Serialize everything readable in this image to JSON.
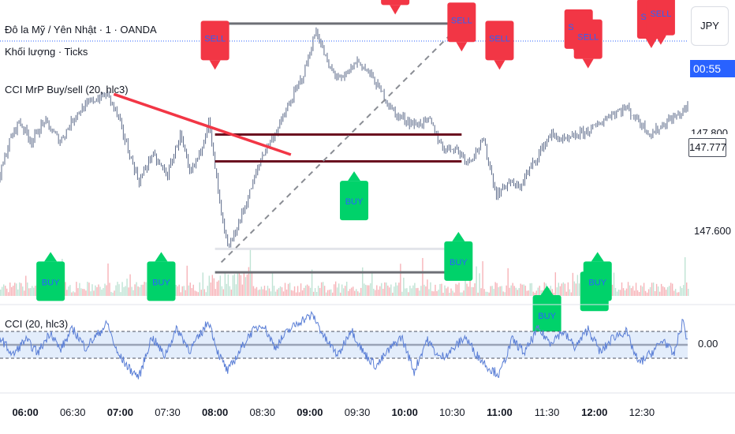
{
  "legend": {
    "symbol": "Đô la Mỹ / Yên Nhật · 1 · OANDA",
    "volume": "Khối lượng · Ticks",
    "indicator": "CCI MrP Buy/sell (20, hlc3)",
    "cci_pane": "CCI (20, hlc3)"
  },
  "price_axis": {
    "currency": "JPY",
    "countdown": "00:55",
    "current_price": "147.777",
    "partial_label": "147.800",
    "tick_label": "147.600",
    "cci_label": "0.00"
  },
  "colors": {
    "price_line": "#2962ff",
    "candle": "#5d6b8a",
    "sell": "#f23645",
    "buy": "#00d26a",
    "signal_text": "#2962ff",
    "resistance": "#6b1020",
    "trendline": "#f23645",
    "cci_line": "#5b7fd6",
    "cci_band": "#e3edfb"
  },
  "chart_data": {
    "type": "line",
    "title": "Đô la Mỹ / Yên Nhật · 1 · OANDA",
    "x_ticks": [
      "06:00",
      "06:30",
      "07:00",
      "07:30",
      "08:00",
      "08:30",
      "09:00",
      "09:30",
      "10:00",
      "10:30",
      "11:00",
      "11:30",
      "12:00",
      "12:30"
    ],
    "x_ticks_bold": [
      "06:00",
      "07:00",
      "08:00",
      "09:00",
      "10:00",
      "11:00",
      "12:00"
    ],
    "x_range": [
      "05:44",
      "12:59"
    ],
    "ylim": [
      147.53,
      147.97
    ],
    "y_ticks": [
      147.6,
      147.8
    ],
    "current_price": 147.777,
    "price_path": [
      [
        "05:44",
        147.71
      ],
      [
        "05:50",
        147.76
      ],
      [
        "05:56",
        147.79
      ],
      [
        "06:04",
        147.76
      ],
      [
        "06:12",
        147.79
      ],
      [
        "06:22",
        147.76
      ],
      [
        "06:32",
        147.8
      ],
      [
        "06:42",
        147.82
      ],
      [
        "06:52",
        147.83
      ],
      [
        "06:58",
        147.8
      ],
      [
        "07:06",
        147.74
      ],
      [
        "07:12",
        147.7
      ],
      [
        "07:20",
        147.74
      ],
      [
        "07:30",
        147.71
      ],
      [
        "07:38",
        147.77
      ],
      [
        "07:44",
        147.71
      ],
      [
        "07:50",
        147.74
      ],
      [
        "07:56",
        147.79
      ],
      [
        "08:00",
        147.72
      ],
      [
        "08:04",
        147.65
      ],
      [
        "08:08",
        147.6
      ],
      [
        "08:12",
        147.62
      ],
      [
        "08:20",
        147.67
      ],
      [
        "08:30",
        147.74
      ],
      [
        "08:40",
        147.78
      ],
      [
        "08:48",
        147.82
      ],
      [
        "08:56",
        147.86
      ],
      [
        "09:04",
        147.925
      ],
      [
        "09:12",
        147.87
      ],
      [
        "09:20",
        147.85
      ],
      [
        "09:30",
        147.88
      ],
      [
        "09:38",
        147.86
      ],
      [
        "09:46",
        147.83
      ],
      [
        "09:54",
        147.8
      ],
      [
        "10:06",
        147.785
      ],
      [
        "10:16",
        147.79
      ],
      [
        "10:24",
        147.75
      ],
      [
        "10:32",
        147.75
      ],
      [
        "10:40",
        147.73
      ],
      [
        "10:50",
        147.76
      ],
      [
        "10:58",
        147.68
      ],
      [
        "11:06",
        147.7
      ],
      [
        "11:12",
        147.69
      ],
      [
        "11:22",
        147.73
      ],
      [
        "11:32",
        147.77
      ],
      [
        "11:42",
        147.76
      ],
      [
        "11:50",
        147.77
      ],
      [
        "12:00",
        147.78
      ],
      [
        "12:10",
        147.8
      ],
      [
        "12:20",
        147.81
      ],
      [
        "12:28",
        147.79
      ],
      [
        "12:36",
        147.77
      ],
      [
        "12:46",
        147.79
      ],
      [
        "12:54",
        147.8
      ],
      [
        "12:58",
        147.81
      ]
    ],
    "volume": "ticks",
    "horizontal_levels": [
      {
        "kind": "grey",
        "from": "08:00",
        "to": "10:36",
        "price": 147.935
      },
      {
        "kind": "dark-red",
        "from": "08:00",
        "to": "10:36",
        "price": 147.77
      },
      {
        "kind": "dark-red",
        "from": "08:00",
        "to": "10:36",
        "price": 147.73
      },
      {
        "kind": "light",
        "from": "08:00",
        "to": "10:36",
        "price": 147.6
      },
      {
        "kind": "grey",
        "from": "08:00",
        "to": "10:36",
        "price": 147.565
      }
    ],
    "trend_lines": [
      {
        "kind": "red",
        "from": [
          "06:56",
          147.83
        ],
        "to": [
          "08:48",
          147.74
        ]
      },
      {
        "kind": "dashed",
        "from": [
          "08:04",
          147.58
        ],
        "to": [
          "10:36",
          147.935
        ]
      }
    ],
    "signals": [
      {
        "type": "SELL",
        "time": "08:00",
        "price": 147.918
      },
      {
        "type": "SELL",
        "time": "09:54",
        "price": 148.0
      },
      {
        "type": "SELL",
        "time": "10:36",
        "price": 147.945
      },
      {
        "type": "SELL",
        "time": "11:00",
        "price": 147.918
      },
      {
        "type": "SELL",
        "time": "11:50",
        "price": 147.935
      },
      {
        "type": "SELL",
        "time": "11:56",
        "price": 147.92
      },
      {
        "type": "SELL",
        "time": "12:36",
        "price": 147.95
      },
      {
        "type": "SELL",
        "time": "12:42",
        "price": 147.955
      },
      {
        "type": "BUY",
        "time": "06:16",
        "price": 147.56
      },
      {
        "type": "BUY",
        "time": "07:26",
        "price": 147.56
      },
      {
        "type": "BUY",
        "time": "09:28",
        "price": 147.68
      },
      {
        "type": "BUY",
        "time": "10:34",
        "price": 147.59
      },
      {
        "type": "BUY",
        "time": "11:30",
        "price": 147.51
      },
      {
        "type": "BUY",
        "time": "12:00",
        "price": 147.545
      },
      {
        "type": "BUY",
        "time": "12:02",
        "price": 147.56
      }
    ],
    "cci": {
      "ylim": [
        -300,
        300
      ],
      "levels": [
        100,
        0,
        -100
      ],
      "level_label": "0.00",
      "band": [
        -100,
        100
      ],
      "path": [
        [
          "05:44",
          60
        ],
        [
          "05:52",
          -80
        ],
        [
          "06:00",
          40
        ],
        [
          "06:08",
          -60
        ],
        [
          "06:16",
          100
        ],
        [
          "06:22",
          -40
        ],
        [
          "06:30",
          120
        ],
        [
          "06:38",
          -20
        ],
        [
          "06:46",
          80
        ],
        [
          "06:52",
          160
        ],
        [
          "06:58",
          -60
        ],
        [
          "07:06",
          -180
        ],
        [
          "07:12",
          -240
        ],
        [
          "07:20",
          60
        ],
        [
          "07:28",
          -80
        ],
        [
          "07:36",
          120
        ],
        [
          "07:44",
          -40
        ],
        [
          "07:50",
          60
        ],
        [
          "07:56",
          180
        ],
        [
          "08:02",
          -60
        ],
        [
          "08:08",
          -200
        ],
        [
          "08:14",
          -80
        ],
        [
          "08:22",
          80
        ],
        [
          "08:30",
          160
        ],
        [
          "08:38",
          -20
        ],
        [
          "08:46",
          100
        ],
        [
          "08:54",
          180
        ],
        [
          "09:02",
          220
        ],
        [
          "09:10",
          40
        ],
        [
          "09:18",
          -80
        ],
        [
          "09:26",
          120
        ],
        [
          "09:34",
          -60
        ],
        [
          "09:42",
          -160
        ],
        [
          "09:50",
          -40
        ],
        [
          "09:58",
          60
        ],
        [
          "10:06",
          -200
        ],
        [
          "10:14",
          40
        ],
        [
          "10:22",
          -100
        ],
        [
          "10:30",
          -40
        ],
        [
          "10:38",
          60
        ],
        [
          "10:46",
          -80
        ],
        [
          "10:54",
          -180
        ],
        [
          "11:00",
          -220
        ],
        [
          "11:08",
          40
        ],
        [
          "11:16",
          -60
        ],
        [
          "11:24",
          120
        ],
        [
          "11:32",
          20
        ],
        [
          "11:40",
          100
        ],
        [
          "11:48",
          -20
        ],
        [
          "11:56",
          120
        ],
        [
          "12:04",
          -60
        ],
        [
          "12:12",
          60
        ],
        [
          "12:20",
          100
        ],
        [
          "12:28",
          -140
        ],
        [
          "12:36",
          -60
        ],
        [
          "12:44",
          40
        ],
        [
          "12:50",
          -80
        ],
        [
          "12:56",
          180
        ],
        [
          "12:59",
          20
        ]
      ]
    }
  }
}
